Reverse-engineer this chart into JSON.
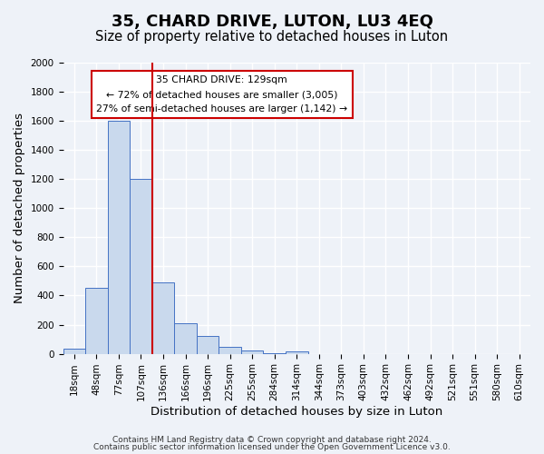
{
  "title": "35, CHARD DRIVE, LUTON, LU3 4EQ",
  "subtitle": "Size of property relative to detached houses in Luton",
  "xlabel": "Distribution of detached houses by size in Luton",
  "ylabel": "Number of detached properties",
  "bin_labels": [
    "18sqm",
    "48sqm",
    "77sqm",
    "107sqm",
    "136sqm",
    "166sqm",
    "196sqm",
    "225sqm",
    "255sqm",
    "284sqm",
    "314sqm",
    "344sqm",
    "373sqm",
    "403sqm",
    "432sqm",
    "462sqm",
    "492sqm",
    "521sqm",
    "551sqm",
    "580sqm",
    "610sqm"
  ],
  "bar_heights": [
    35,
    450,
    1600,
    1200,
    490,
    210,
    120,
    45,
    20,
    5,
    15,
    0,
    0,
    0,
    0,
    0,
    0,
    0,
    0,
    0,
    0
  ],
  "bar_color": "#c9d9ed",
  "bar_edge_color": "#4472c4",
  "vline_x": 4,
  "vline_color": "#cc0000",
  "annotation_line1": "35 CHARD DRIVE: 129sqm",
  "annotation_line2": "← 72% of detached houses are smaller (3,005)",
  "annotation_line3": "27% of semi-detached houses are larger (1,142) →",
  "ylim": [
    0,
    2000
  ],
  "yticks": [
    0,
    200,
    400,
    600,
    800,
    1000,
    1200,
    1400,
    1600,
    1800,
    2000
  ],
  "footer_line1": "Contains HM Land Registry data © Crown copyright and database right 2024.",
  "footer_line2": "Contains public sector information licensed under the Open Government Licence v3.0.",
  "bg_color": "#eef2f8",
  "grid_color": "#ffffff",
  "title_fontsize": 13,
  "subtitle_fontsize": 10.5,
  "label_fontsize": 9.5,
  "tick_fontsize": 7.5,
  "footer_fontsize": 6.5
}
